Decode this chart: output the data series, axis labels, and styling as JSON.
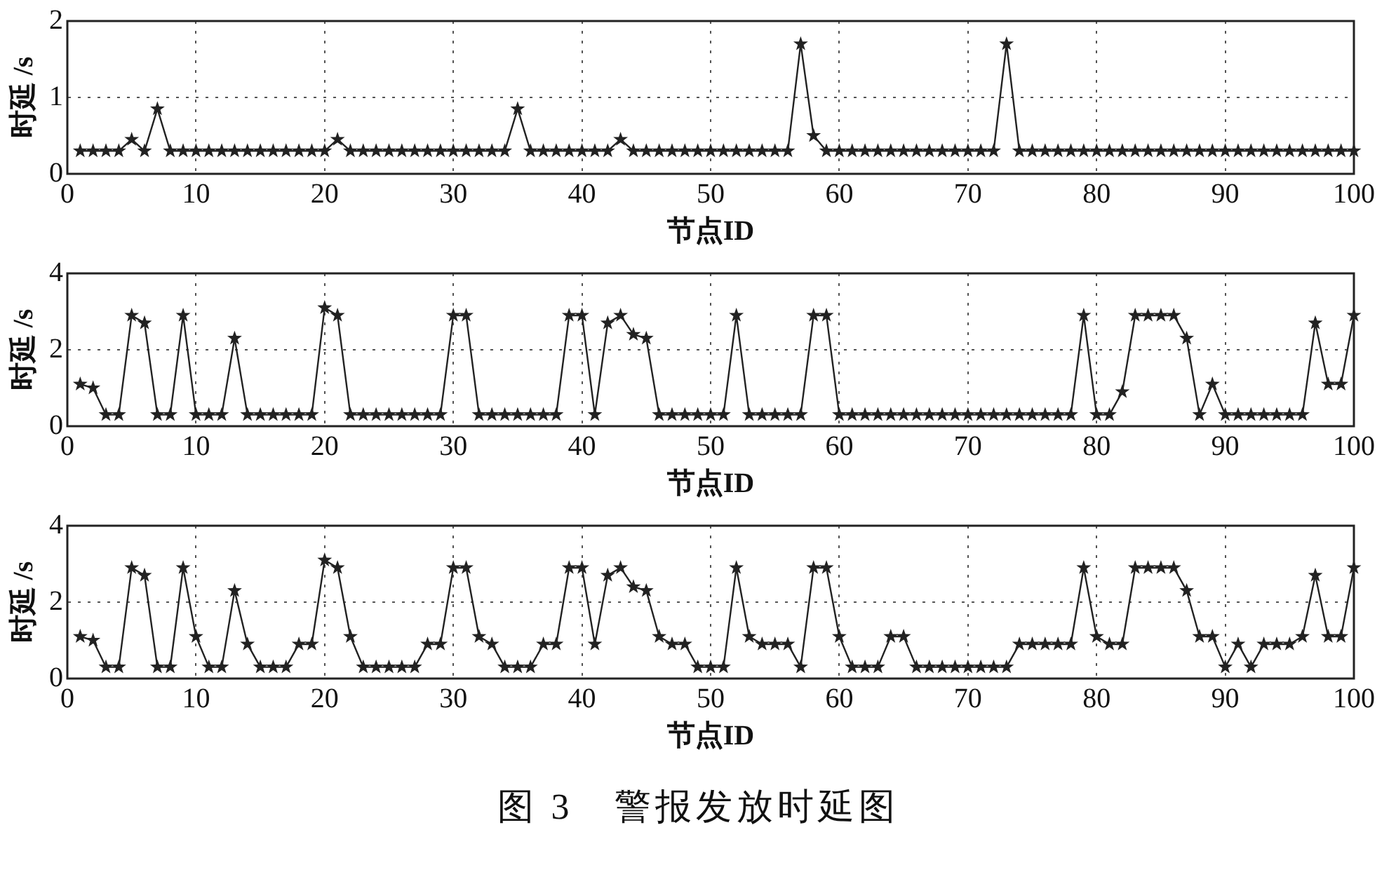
{
  "chart_data": [
    {
      "type": "line",
      "xlabel": "节点ID",
      "ylabel": "时延 /s",
      "grid": true,
      "marker": "star",
      "line_style": "solid",
      "xlim": [
        0,
        100
      ],
      "xticks": [
        0,
        10,
        20,
        30,
        40,
        50,
        60,
        70,
        80,
        90,
        100
      ],
      "ylim": [
        0,
        2
      ],
      "yticks": [
        0,
        1,
        2
      ],
      "x": [
        1,
        2,
        3,
        4,
        5,
        6,
        7,
        8,
        9,
        10,
        11,
        12,
        13,
        14,
        15,
        16,
        17,
        18,
        19,
        20,
        21,
        22,
        23,
        24,
        25,
        26,
        27,
        28,
        29,
        30,
        31,
        32,
        33,
        34,
        35,
        36,
        37,
        38,
        39,
        40,
        41,
        42,
        43,
        44,
        45,
        46,
        47,
        48,
        49,
        50,
        51,
        52,
        53,
        54,
        55,
        56,
        57,
        58,
        59,
        60,
        61,
        62,
        63,
        64,
        65,
        66,
        67,
        68,
        69,
        70,
        71,
        72,
        73,
        74,
        75,
        76,
        77,
        78,
        79,
        80,
        81,
        82,
        83,
        84,
        85,
        86,
        87,
        88,
        89,
        90,
        91,
        92,
        93,
        94,
        95,
        96,
        97,
        98,
        99,
        100
      ],
      "series": [
        {
          "color": "#222222",
          "values": [
            0.3,
            0.3,
            0.3,
            0.3,
            0.45,
            0.3,
            0.85,
            0.3,
            0.3,
            0.3,
            0.3,
            0.3,
            0.3,
            0.3,
            0.3,
            0.3,
            0.3,
            0.3,
            0.3,
            0.3,
            0.45,
            0.3,
            0.3,
            0.3,
            0.3,
            0.3,
            0.3,
            0.3,
            0.3,
            0.3,
            0.3,
            0.3,
            0.3,
            0.3,
            0.85,
            0.3,
            0.3,
            0.3,
            0.3,
            0.3,
            0.3,
            0.3,
            0.45,
            0.3,
            0.3,
            0.3,
            0.3,
            0.3,
            0.3,
            0.3,
            0.3,
            0.3,
            0.3,
            0.3,
            0.3,
            0.3,
            1.7,
            0.5,
            0.3,
            0.3,
            0.3,
            0.3,
            0.3,
            0.3,
            0.3,
            0.3,
            0.3,
            0.3,
            0.3,
            0.3,
            0.3,
            0.3,
            1.7,
            0.3,
            0.3,
            0.3,
            0.3,
            0.3,
            0.3,
            0.3,
            0.3,
            0.3,
            0.3,
            0.3,
            0.3,
            0.3,
            0.3,
            0.3,
            0.3,
            0.3,
            0.3,
            0.3,
            0.3,
            0.3,
            0.3,
            0.3,
            0.3,
            0.3,
            0.3,
            0.3
          ]
        }
      ]
    },
    {
      "type": "line",
      "xlabel": "节点ID",
      "ylabel": "时延 /s",
      "grid": true,
      "marker": "star",
      "line_style": "solid",
      "xlim": [
        0,
        100
      ],
      "xticks": [
        0,
        10,
        20,
        30,
        40,
        50,
        60,
        70,
        80,
        90,
        100
      ],
      "ylim": [
        0,
        4
      ],
      "yticks": [
        0,
        2,
        4
      ],
      "x": [
        1,
        2,
        3,
        4,
        5,
        6,
        7,
        8,
        9,
        10,
        11,
        12,
        13,
        14,
        15,
        16,
        17,
        18,
        19,
        20,
        21,
        22,
        23,
        24,
        25,
        26,
        27,
        28,
        29,
        30,
        31,
        32,
        33,
        34,
        35,
        36,
        37,
        38,
        39,
        40,
        41,
        42,
        43,
        44,
        45,
        46,
        47,
        48,
        49,
        50,
        51,
        52,
        53,
        54,
        55,
        56,
        57,
        58,
        59,
        60,
        61,
        62,
        63,
        64,
        65,
        66,
        67,
        68,
        69,
        70,
        71,
        72,
        73,
        74,
        75,
        76,
        77,
        78,
        79,
        80,
        81,
        82,
        83,
        84,
        85,
        86,
        87,
        88,
        89,
        90,
        91,
        92,
        93,
        94,
        95,
        96,
        97,
        98,
        99,
        100
      ],
      "series": [
        {
          "color": "#222222",
          "values": [
            1.1,
            1.0,
            0.3,
            0.3,
            2.9,
            2.7,
            0.3,
            0.3,
            2.9,
            0.3,
            0.3,
            0.3,
            2.3,
            0.3,
            0.3,
            0.3,
            0.3,
            0.3,
            0.3,
            3.1,
            2.9,
            0.3,
            0.3,
            0.3,
            0.3,
            0.3,
            0.3,
            0.3,
            0.3,
            2.9,
            2.9,
            0.3,
            0.3,
            0.3,
            0.3,
            0.3,
            0.3,
            0.3,
            2.9,
            2.9,
            0.3,
            2.7,
            2.9,
            2.4,
            2.3,
            0.3,
            0.3,
            0.3,
            0.3,
            0.3,
            0.3,
            2.9,
            0.3,
            0.3,
            0.3,
            0.3,
            0.3,
            2.9,
            2.9,
            0.3,
            0.3,
            0.3,
            0.3,
            0.3,
            0.3,
            0.3,
            0.3,
            0.3,
            0.3,
            0.3,
            0.3,
            0.3,
            0.3,
            0.3,
            0.3,
            0.3,
            0.3,
            0.3,
            2.9,
            0.3,
            0.3,
            0.9,
            2.9,
            2.9,
            2.9,
            2.9,
            2.3,
            0.3,
            1.1,
            0.3,
            0.3,
            0.3,
            0.3,
            0.3,
            0.3,
            0.3,
            2.7,
            1.1,
            1.1,
            2.9
          ]
        }
      ]
    },
    {
      "type": "line",
      "xlabel": "节点ID",
      "ylabel": "时延 /s",
      "grid": true,
      "marker": "star",
      "line_style": "solid",
      "xlim": [
        0,
        100
      ],
      "xticks": [
        0,
        10,
        20,
        30,
        40,
        50,
        60,
        70,
        80,
        90,
        100
      ],
      "ylim": [
        0,
        4
      ],
      "yticks": [
        0,
        2,
        4
      ],
      "annotations": [
        "图 3　警报发放时延图"
      ],
      "x": [
        1,
        2,
        3,
        4,
        5,
        6,
        7,
        8,
        9,
        10,
        11,
        12,
        13,
        14,
        15,
        16,
        17,
        18,
        19,
        20,
        21,
        22,
        23,
        24,
        25,
        26,
        27,
        28,
        29,
        30,
        31,
        32,
        33,
        34,
        35,
        36,
        37,
        38,
        39,
        40,
        41,
        42,
        43,
        44,
        45,
        46,
        47,
        48,
        49,
        50,
        51,
        52,
        53,
        54,
        55,
        56,
        57,
        58,
        59,
        60,
        61,
        62,
        63,
        64,
        65,
        66,
        67,
        68,
        69,
        70,
        71,
        72,
        73,
        74,
        75,
        76,
        77,
        78,
        79,
        80,
        81,
        82,
        83,
        84,
        85,
        86,
        87,
        88,
        89,
        90,
        91,
        92,
        93,
        94,
        95,
        96,
        97,
        98,
        99,
        100
      ],
      "series": [
        {
          "color": "#222222",
          "values": [
            1.1,
            1.0,
            0.3,
            0.3,
            2.9,
            2.7,
            0.3,
            0.3,
            2.9,
            1.1,
            0.3,
            0.3,
            2.3,
            0.9,
            0.3,
            0.3,
            0.3,
            0.9,
            0.9,
            3.1,
            2.9,
            1.1,
            0.3,
            0.3,
            0.3,
            0.3,
            0.3,
            0.9,
            0.9,
            2.9,
            2.9,
            1.1,
            0.9,
            0.3,
            0.3,
            0.3,
            0.9,
            0.9,
            2.9,
            2.9,
            0.9,
            2.7,
            2.9,
            2.4,
            2.3,
            1.1,
            0.9,
            0.9,
            0.3,
            0.3,
            0.3,
            2.9,
            1.1,
            0.9,
            0.9,
            0.9,
            0.3,
            2.9,
            2.9,
            1.1,
            0.3,
            0.3,
            0.3,
            1.1,
            1.1,
            0.3,
            0.3,
            0.3,
            0.3,
            0.3,
            0.3,
            0.3,
            0.3,
            0.9,
            0.9,
            0.9,
            0.9,
            0.9,
            2.9,
            1.1,
            0.9,
            0.9,
            2.9,
            2.9,
            2.9,
            2.9,
            2.3,
            1.1,
            1.1,
            0.3,
            0.9,
            0.3,
            0.9,
            0.9,
            0.9,
            1.1,
            2.7,
            1.1,
            1.1,
            2.9
          ]
        }
      ]
    }
  ]
}
